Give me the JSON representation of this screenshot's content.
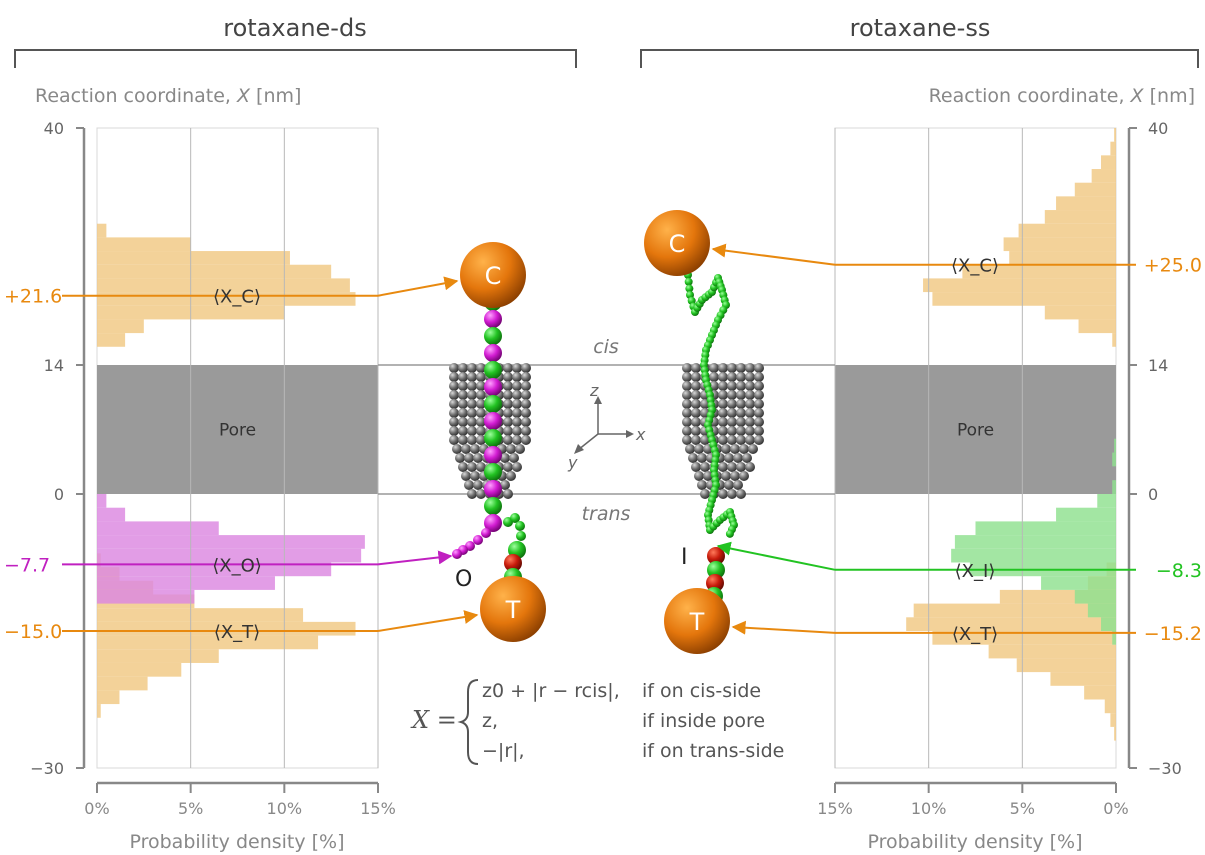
{
  "figure": {
    "left_title": "rotaxane-ds",
    "right_title": "rotaxane-ss",
    "y_label_left": "Reaction coordinate, X [nm]",
    "y_label_right": "Reaction coordinate, X [nm]",
    "y_label_prefix": "Reaction coordinate, ",
    "y_label_var": "X",
    "y_label_unit": " [nm]",
    "x_label_left": "Probability density [%]",
    "x_label_right": "Probability density [%]",
    "pore_label_left": "Pore",
    "pore_label_right": "Pore",
    "cis_label": "cis",
    "trans_label": "trans",
    "axis_labels": {
      "z": "z",
      "x": "x",
      "y": "y"
    },
    "bead_labels": {
      "c_left": "C",
      "t_left": "T",
      "o_left": "O",
      "c_right": "C",
      "t_right": "T",
      "i_right": "I"
    },
    "colors": {
      "orange": "#e8890f",
      "orange_fill": "#f0c882",
      "magenta": "#c020c0",
      "magenta_fill": "#dc88e0",
      "green": "#22c322",
      "green_fill": "#8fe08f",
      "pore": "#9a9a9a",
      "grid": "#b8b8b8",
      "axis": "#888888"
    },
    "equation": {
      "lhs": "X =",
      "rows": [
        {
          "expr": "z0 + |r − rcis|,",
          "cond": "if on cis-side"
        },
        {
          "expr": "z,",
          "cond": "if inside pore"
        },
        {
          "expr": "−|r|,",
          "cond": "if on trans-side"
        }
      ]
    }
  },
  "chart_data": [
    {
      "type": "bar",
      "name": "rotaxane-ds",
      "orientation": "horizontal",
      "xlabel": "Probability density [%]",
      "ylabel": "Reaction coordinate, X [nm]",
      "xlim": [
        0,
        15
      ],
      "ylim": [
        -30,
        40
      ],
      "xticks": [
        "0%",
        "5%",
        "10%",
        "15%"
      ],
      "yticks": [
        "40",
        "14",
        "0",
        "−30"
      ],
      "pore_region": [
        0,
        14
      ],
      "series": [
        {
          "color": "#f0c882",
          "bins": [
            [
              37,
              38.5,
              0
            ],
            [
              35.5,
              37,
              0
            ],
            [
              34,
              35.5,
              0
            ],
            [
              32.5,
              34,
              0
            ],
            [
              31,
              32.5,
              0
            ],
            [
              29.5,
              31,
              0
            ],
            [
              28,
              29.5,
              0.5
            ],
            [
              26.5,
              28,
              5
            ],
            [
              25,
              26.5,
              10.3
            ],
            [
              23.5,
              25,
              12.5
            ],
            [
              22,
              23.5,
              13.5
            ],
            [
              20.5,
              22,
              13.8
            ],
            [
              19,
              20.5,
              10
            ],
            [
              17.5,
              19,
              2.5
            ],
            [
              16,
              17.5,
              1.5
            ],
            [
              -6.5,
              -5,
              0
            ],
            [
              -8,
              -6.5,
              0.2
            ],
            [
              -9.5,
              -8,
              1.2
            ],
            [
              -11,
              -9.5,
              3
            ],
            [
              -12.5,
              -11,
              5.2
            ],
            [
              -14,
              -12.5,
              11
            ],
            [
              -15.5,
              -14,
              13.8
            ],
            [
              -17,
              -15.5,
              11.8
            ],
            [
              -18.5,
              -17,
              6.5
            ],
            [
              -20,
              -18.5,
              4.5
            ],
            [
              -21.5,
              -20,
              2.7
            ],
            [
              -23,
              -21.5,
              1.2
            ],
            [
              -24.5,
              -23,
              0.2
            ]
          ]
        },
        {
          "color": "#dc88e0",
          "bins": [
            [
              -1.5,
              0,
              0.5
            ],
            [
              -3,
              -1.5,
              1.5
            ],
            [
              -4.5,
              -3,
              6.5
            ],
            [
              -6,
              -4.5,
              14.3
            ],
            [
              -7.5,
              -6,
              14.1
            ],
            [
              -9,
              -7.5,
              12.5
            ],
            [
              -10.5,
              -9,
              9.5
            ],
            [
              -12,
              -10.5,
              5.2
            ]
          ]
        }
      ],
      "annotations": [
        {
          "label": "⟨X_C⟩",
          "value": 21.6,
          "text": "+21.6",
          "bead": "C"
        },
        {
          "label": "⟨X_O⟩",
          "value": -7.7,
          "text": "−7.7",
          "bead": "O"
        },
        {
          "label": "⟨X_T⟩",
          "value": -15.0,
          "text": "−15.0",
          "bead": "T"
        }
      ]
    },
    {
      "type": "bar",
      "name": "rotaxane-ss",
      "orientation": "horizontal",
      "xlabel": "Probability density [%]",
      "ylabel": "Reaction coordinate, X [nm]",
      "xlim": [
        15,
        0
      ],
      "ylim": [
        -30,
        40
      ],
      "xticks": [
        "15%",
        "10%",
        "5%",
        "0%"
      ],
      "yticks": [
        "40",
        "14",
        "0",
        "−30"
      ],
      "pore_region": [
        0,
        14
      ],
      "series": [
        {
          "color": "#f0c882",
          "bins": [
            [
              38.5,
              40,
              0.1
            ],
            [
              37,
              38.5,
              0.3
            ],
            [
              35.5,
              37,
              0.8
            ],
            [
              34,
              35.5,
              1.3
            ],
            [
              32.5,
              34,
              2.2
            ],
            [
              31,
              32.5,
              3.2
            ],
            [
              29.5,
              31,
              3.8
            ],
            [
              28,
              29.5,
              5.2
            ],
            [
              26.5,
              28,
              6.0
            ],
            [
              25,
              26.5,
              5.7
            ],
            [
              23.5,
              25,
              8.2
            ],
            [
              22,
              23.5,
              10.3
            ],
            [
              20.5,
              22,
              9.8
            ],
            [
              19,
              20.5,
              3.8
            ],
            [
              17.5,
              19,
              2.0
            ],
            [
              16,
              17.5,
              0.2
            ],
            [
              -9,
              -7.5,
              0.5
            ],
            [
              -10.5,
              -9,
              1.5
            ],
            [
              -12,
              -10.5,
              6.2
            ],
            [
              -13.5,
              -12,
              10.8
            ],
            [
              -15,
              -13.5,
              11.2
            ],
            [
              -16.5,
              -15,
              9.8
            ],
            [
              -18,
              -16.5,
              6.8
            ],
            [
              -19.5,
              -18,
              5.3
            ],
            [
              -21,
              -19.5,
              3.5
            ],
            [
              -22.5,
              -21,
              1.7
            ],
            [
              -24,
              -22.5,
              0.6
            ],
            [
              -25.5,
              -24,
              0.3
            ],
            [
              -27,
              -25.5,
              0.1
            ]
          ]
        },
        {
          "color": "#8fe08f",
          "bins": [
            [
              4.5,
              6,
              0.1
            ],
            [
              3,
              4.5,
              0.2
            ],
            [
              0,
              1.5,
              0.2
            ],
            [
              -1.5,
              0,
              1.0
            ],
            [
              -3,
              -1.5,
              3.2
            ],
            [
              -4.5,
              -3,
              7.5
            ],
            [
              -6,
              -4.5,
              8.6
            ],
            [
              -7.5,
              -6,
              8.8
            ],
            [
              -9,
              -7.5,
              7.8
            ],
            [
              -10.5,
              -9,
              4.0
            ],
            [
              -12,
              -10.5,
              2.2
            ],
            [
              -13.5,
              -12,
              1.5
            ],
            [
              -15,
              -13.5,
              0.8
            ],
            [
              -16.5,
              -15,
              0.2
            ]
          ]
        }
      ],
      "annotations": [
        {
          "label": "⟨X_C⟩",
          "value": 25.0,
          "text": "+25.0",
          "bead": "C"
        },
        {
          "label": "⟨X_I⟩",
          "value": -8.3,
          "text": "−8.3",
          "bead": "I"
        },
        {
          "label": "⟨X_T⟩",
          "value": -15.2,
          "text": "−15.2",
          "bead": "T"
        }
      ]
    }
  ]
}
